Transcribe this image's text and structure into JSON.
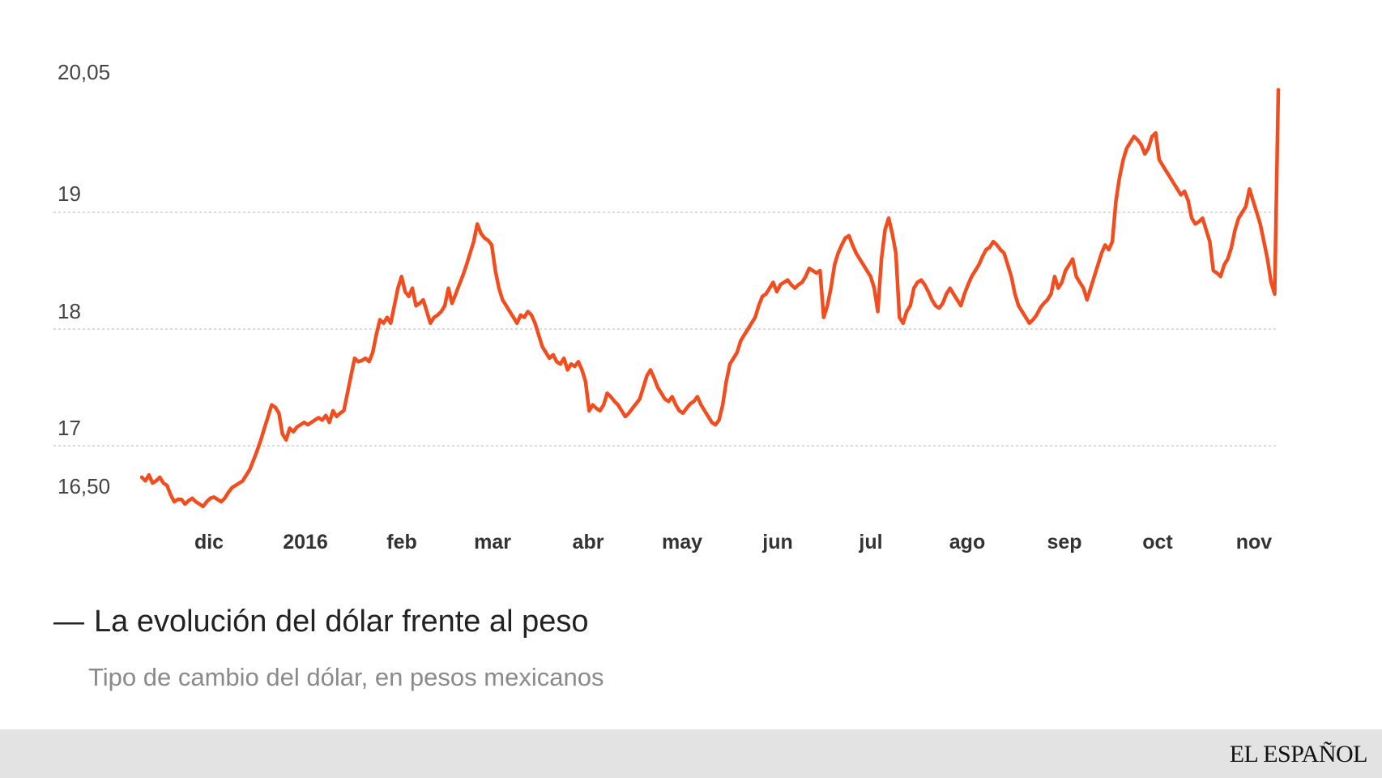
{
  "chart_data": {
    "type": "line",
    "title": "La evolución del dólar frente al peso",
    "subtitle": "Tipo de cambio del dólar, en pesos mexicanos",
    "ylim": [
      16.3,
      20.3
    ],
    "y_ticks": [
      {
        "label": "20,05",
        "value": 20.05
      },
      {
        "label": "19",
        "value": 19.0
      },
      {
        "label": "18",
        "value": 18.0
      },
      {
        "label": "17",
        "value": 17.0
      },
      {
        "label": "16,50",
        "value": 16.5
      }
    ],
    "gridlines": [
      19,
      18,
      17
    ],
    "x_ticks": [
      "dic",
      "2016",
      "feb",
      "mar",
      "abr",
      "may",
      "jun",
      "jul",
      "ago",
      "sep",
      "oct",
      "nov"
    ],
    "line_color": "#f24d1f",
    "series": [
      {
        "values": [
          16.73,
          16.7,
          16.75,
          16.68,
          16.7,
          16.73,
          16.68,
          16.66,
          16.58,
          16.52,
          16.54,
          16.54,
          16.5,
          16.53,
          16.55,
          16.52,
          16.5,
          16.48,
          16.52,
          16.55,
          16.56,
          16.54,
          16.52,
          16.55,
          16.6,
          16.64,
          16.66,
          16.68,
          16.7,
          16.75,
          16.8,
          16.88,
          16.96,
          17.05,
          17.15,
          17.25,
          17.35,
          17.33,
          17.28,
          17.1,
          17.05,
          17.15,
          17.12,
          17.16,
          17.18,
          17.2,
          17.18,
          17.2,
          17.22,
          17.24,
          17.22,
          17.26,
          17.2,
          17.3,
          17.25,
          17.28,
          17.3,
          17.45,
          17.6,
          17.75,
          17.72,
          17.73,
          17.75,
          17.72,
          17.8,
          17.95,
          18.08,
          18.05,
          18.1,
          18.05,
          18.2,
          18.35,
          18.45,
          18.32,
          18.28,
          18.35,
          18.2,
          18.22,
          18.25,
          18.15,
          18.05,
          18.1,
          18.12,
          18.15,
          18.2,
          18.35,
          18.22,
          18.3,
          18.38,
          18.46,
          18.55,
          18.65,
          18.75,
          18.9,
          18.82,
          18.78,
          18.76,
          18.72,
          18.5,
          18.35,
          18.25,
          18.2,
          18.15,
          18.1,
          18.05,
          18.12,
          18.1,
          18.15,
          18.12,
          18.05,
          17.95,
          17.85,
          17.8,
          17.75,
          17.78,
          17.72,
          17.7,
          17.75,
          17.65,
          17.7,
          17.68,
          17.72,
          17.65,
          17.55,
          17.3,
          17.35,
          17.32,
          17.3,
          17.35,
          17.45,
          17.42,
          17.38,
          17.35,
          17.3,
          17.25,
          17.28,
          17.32,
          17.36,
          17.4,
          17.5,
          17.6,
          17.65,
          17.58,
          17.5,
          17.45,
          17.4,
          17.38,
          17.42,
          17.35,
          17.3,
          17.28,
          17.32,
          17.36,
          17.38,
          17.42,
          17.35,
          17.3,
          17.25,
          17.2,
          17.18,
          17.22,
          17.35,
          17.55,
          17.7,
          17.75,
          17.8,
          17.9,
          17.95,
          18.0,
          18.05,
          18.1,
          18.2,
          18.28,
          18.3,
          18.35,
          18.4,
          18.32,
          18.38,
          18.4,
          18.42,
          18.38,
          18.35,
          18.38,
          18.4,
          18.45,
          18.52,
          18.5,
          18.48,
          18.5,
          18.1,
          18.2,
          18.35,
          18.55,
          18.65,
          18.72,
          18.78,
          18.8,
          18.72,
          18.65,
          18.6,
          18.55,
          18.5,
          18.45,
          18.35,
          18.15,
          18.6,
          18.85,
          18.95,
          18.82,
          18.65,
          18.1,
          18.05,
          18.15,
          18.2,
          18.35,
          18.4,
          18.42,
          18.38,
          18.32,
          18.25,
          18.2,
          18.18,
          18.22,
          18.3,
          18.35,
          18.3,
          18.25,
          18.2,
          18.3,
          18.38,
          18.45,
          18.5,
          18.55,
          18.62,
          18.68,
          18.7,
          18.75,
          18.72,
          18.68,
          18.65,
          18.55,
          18.45,
          18.3,
          18.2,
          18.15,
          18.1,
          18.05,
          18.08,
          18.12,
          18.18,
          18.22,
          18.25,
          18.3,
          18.45,
          18.35,
          18.4,
          18.5,
          18.55,
          18.6,
          18.45,
          18.4,
          18.35,
          18.25,
          18.35,
          18.45,
          18.55,
          18.65,
          18.72,
          18.68,
          18.75,
          19.1,
          19.3,
          19.45,
          19.55,
          19.6,
          19.65,
          19.62,
          19.58,
          19.5,
          19.55,
          19.65,
          19.68,
          19.45,
          19.4,
          19.35,
          19.3,
          19.25,
          19.2,
          19.15,
          19.18,
          19.1,
          18.95,
          18.9,
          18.92,
          18.95,
          18.85,
          18.75,
          18.5,
          18.48,
          18.45,
          18.55,
          18.6,
          18.7,
          18.85,
          18.95,
          19.0,
          19.05,
          19.2,
          19.1,
          19.0,
          18.9,
          18.75,
          18.6,
          18.4,
          18.3,
          20.05
        ]
      }
    ]
  },
  "branding": {
    "logo": "EL ESPAÑOL"
  }
}
